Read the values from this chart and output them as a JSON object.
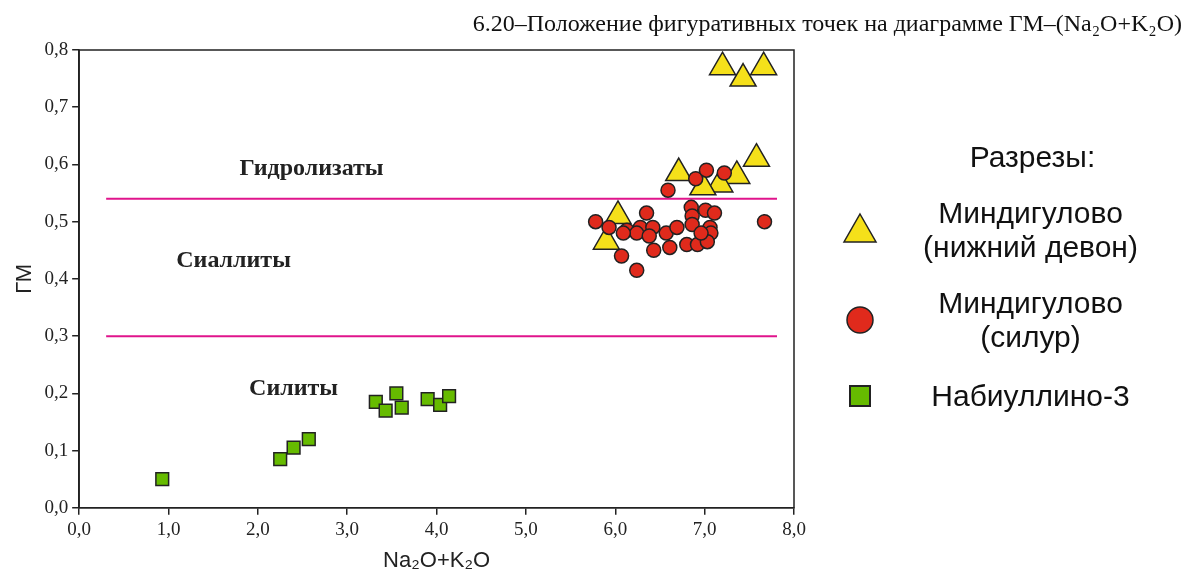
{
  "chart_data": {
    "type": "scatter",
    "title": "6.20–Положение фигуративных точек на диаграмме ГМ–(Na₂O+K₂O)",
    "xlabel": "Na₂O+K₂O",
    "ylabel": "ГМ",
    "legend_title": "Разрезы:",
    "xlim": [
      0,
      8
    ],
    "ylim": [
      0,
      0.8
    ],
    "xticks": [
      {
        "value": 0,
        "label": "0,0"
      },
      {
        "value": 1,
        "label": "1,0"
      },
      {
        "value": 2,
        "label": "2,0"
      },
      {
        "value": 3,
        "label": "3,0"
      },
      {
        "value": 4,
        "label": "4,0"
      },
      {
        "value": 5,
        "label": "5,0"
      },
      {
        "value": 6,
        "label": "6,0"
      },
      {
        "value": 7,
        "label": "7,0"
      },
      {
        "value": 8,
        "label": "8,0"
      }
    ],
    "yticks": [
      {
        "value": 0,
        "label": "0,0"
      },
      {
        "value": 0.1,
        "label": "0,1"
      },
      {
        "value": 0.2,
        "label": "0,2"
      },
      {
        "value": 0.3,
        "label": "0,3"
      },
      {
        "value": 0.4,
        "label": "0,4"
      },
      {
        "value": 0.5,
        "label": "0,5"
      },
      {
        "value": 0.6,
        "label": "0,6"
      },
      {
        "value": 0.7,
        "label": "0,7"
      },
      {
        "value": 0.8,
        "label": "0,8"
      }
    ],
    "grid": false,
    "legend": "right",
    "ref_lines": [
      {
        "axis": "y",
        "value": 0.54,
        "color": "#e0148c"
      },
      {
        "axis": "y",
        "value": 0.3,
        "color": "#e0148c"
      }
    ],
    "annotations": [
      "Гидролизаты",
      "Сиаллиты",
      "Силиты"
    ],
    "series": [
      {
        "name": "Миндигулово (силур)",
        "color": "#e02a1c",
        "marker": "circle",
        "x": [
          5.78,
          6.35,
          6.24,
          6.07,
          6.43,
          6.28,
          6.42,
          6.13,
          6.24,
          6.38,
          6.57,
          6.69,
          6.59,
          6.9,
          7.02,
          7.22,
          6.61,
          6.8,
          6.92,
          6.85,
          6.86,
          6.86,
          7.01,
          7.11,
          7.06,
          7.07,
          7.03,
          6.96,
          7.67,
          5.93,
          6.09
        ],
        "values": [
          0.5,
          0.515,
          0.415,
          0.44,
          0.45,
          0.49,
          0.49,
          0.485,
          0.48,
          0.475,
          0.48,
          0.49,
          0.555,
          0.575,
          0.59,
          0.585,
          0.455,
          0.46,
          0.46,
          0.525,
          0.51,
          0.495,
          0.52,
          0.515,
          0.49,
          0.48,
          0.465,
          0.48,
          0.5,
          0.49,
          0.48
        ]
      },
      {
        "name": "Миндигулово (нижний девон)",
        "color": "#f5e01a",
        "marker": "triangle",
        "x": [
          7.2,
          7.43,
          7.66,
          7.58,
          7.36,
          7.17,
          6.98,
          6.71,
          6.03,
          5.9
        ],
        "values": [
          0.77,
          0.75,
          0.77,
          0.61,
          0.58,
          0.565,
          0.56,
          0.585,
          0.51,
          0.465
        ]
      },
      {
        "name": "Набиуллино-3",
        "color": "#66bb00",
        "marker": "square",
        "x": [
          0.93,
          2.25,
          2.4,
          2.57,
          3.32,
          3.55,
          3.43,
          3.61,
          3.9,
          4.04,
          4.14
        ],
        "values": [
          0.05,
          0.085,
          0.105,
          0.12,
          0.185,
          0.2,
          0.17,
          0.175,
          0.19,
          0.18,
          0.195
        ]
      }
    ]
  }
}
